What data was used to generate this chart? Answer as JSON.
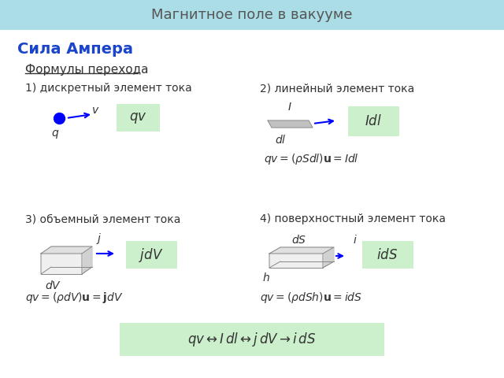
{
  "title": "Магнитное поле в вакууме",
  "title_bg": "#aadde6",
  "title_color": "#555555",
  "title_fontsize": 13,
  "heading": "Сила Ампера",
  "heading_color": "#1a44cc",
  "heading_fontsize": 14,
  "subheading": "Формулы перехода",
  "subheading_fontsize": 11,
  "label1": "1) дискретный элемент тока",
  "label2": "2) линейный элемент тока",
  "label3": "3) объемный элемент тока",
  "label4": "4) поверхностный элемент тока",
  "green_box_color": "#ccf0cc",
  "arrow_color": "#0000ff",
  "text_color": "#333333",
  "bg_color": "#ffffff"
}
